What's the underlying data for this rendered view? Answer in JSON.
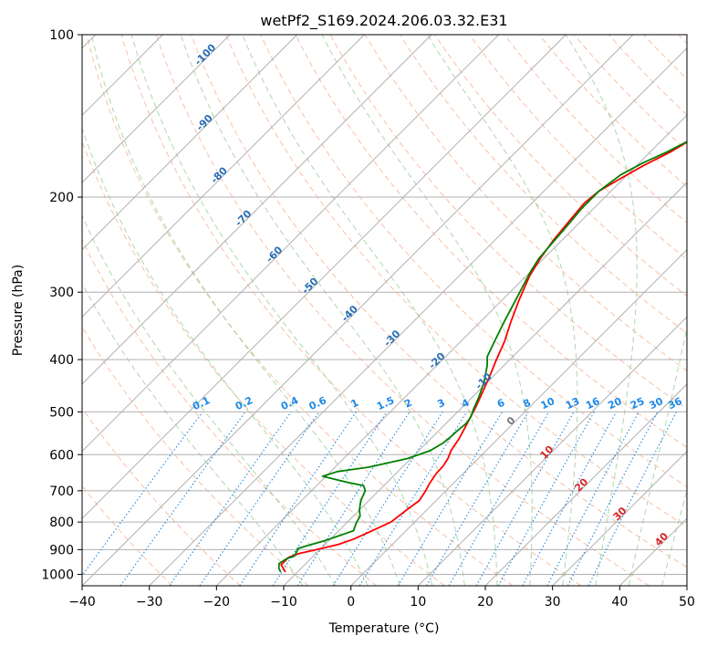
{
  "chart_data": {
    "type": "line",
    "title": "wetPf2_S169.2024.206.03.32.E31",
    "xlabel": "Temperature (°C)",
    "ylabel": "Pressure (hPa)",
    "xlim": [
      -40,
      50
    ],
    "ylim": [
      1050,
      100
    ],
    "y_scale": "log",
    "grid": true,
    "x_ticks": [
      "−40",
      "−30",
      "−20",
      "−10",
      "0",
      "10",
      "20",
      "30",
      "40",
      "50"
    ],
    "y_ticks": [
      "100",
      "200",
      "300",
      "400",
      "500",
      "600",
      "700",
      "800",
      "900",
      "1000"
    ],
    "series": [
      {
        "color": "#ff0000",
        "points": [
          [
            -11.8,
            990
          ],
          [
            -13.5,
            960
          ],
          [
            -13.5,
            930
          ],
          [
            -12.5,
            915
          ],
          [
            -10.5,
            900
          ],
          [
            -8,
            880
          ],
          [
            -6.5,
            860
          ],
          [
            -5,
            830
          ],
          [
            -3.5,
            800
          ],
          [
            -3,
            760
          ],
          [
            -2.5,
            730
          ],
          [
            -3,
            700
          ],
          [
            -3.5,
            680
          ],
          [
            -4,
            650
          ],
          [
            -4.1,
            630
          ],
          [
            -4.5,
            610
          ],
          [
            -5.2,
            590
          ],
          [
            -5.8,
            560
          ],
          [
            -6.7,
            530
          ],
          [
            -7.5,
            505
          ],
          [
            -8,
            490
          ],
          [
            -9.2,
            460
          ],
          [
            -10.5,
            430
          ],
          [
            -12,
            400
          ],
          [
            -13.5,
            370
          ],
          [
            -15.5,
            340
          ],
          [
            -17.5,
            310
          ],
          [
            -19.5,
            280
          ],
          [
            -20.5,
            260
          ],
          [
            -21.3,
            240
          ],
          [
            -21.8,
            220
          ],
          [
            -22.2,
            205
          ],
          [
            -21.8,
            195
          ],
          [
            -20.5,
            185
          ],
          [
            -19,
            175
          ],
          [
            -17,
            165
          ],
          [
            -15.5,
            155
          ],
          [
            -14,
            147
          ],
          [
            -12.5,
            138
          ],
          [
            -10.5,
            128
          ],
          [
            -8.5,
            120
          ],
          [
            -6.5,
            113
          ],
          [
            -5,
            108
          ],
          [
            -3.5,
            103
          ],
          [
            -2.5,
            100
          ]
        ]
      },
      {
        "color": "#008000",
        "points": [
          [
            -12.5,
            990
          ],
          [
            -13.3,
            975
          ],
          [
            -14,
            955
          ],
          [
            -13.6,
            935
          ],
          [
            -12.8,
            925
          ],
          [
            -13.2,
            905
          ],
          [
            -13.4,
            895
          ],
          [
            -12.5,
            885
          ],
          [
            -10.5,
            865
          ],
          [
            -7.8,
            830
          ],
          [
            -8.5,
            805
          ],
          [
            -9,
            780
          ],
          [
            -10,
            760
          ],
          [
            -11.2,
            730
          ],
          [
            -12,
            700
          ],
          [
            -13,
            685
          ],
          [
            -16,
            675
          ],
          [
            -20.5,
            658
          ],
          [
            -19,
            645
          ],
          [
            -15,
            633
          ],
          [
            -10.5,
            610
          ],
          [
            -8.3,
            590
          ],
          [
            -7.5,
            570
          ],
          [
            -7.3,
            555
          ],
          [
            -7.2,
            540
          ],
          [
            -7,
            525
          ],
          [
            -7.3,
            510
          ],
          [
            -8,
            495
          ],
          [
            -9,
            470
          ],
          [
            -10.5,
            440
          ],
          [
            -12.5,
            410
          ],
          [
            -13.8,
            395
          ],
          [
            -14.5,
            380
          ],
          [
            -15,
            370
          ],
          [
            -16.5,
            340
          ],
          [
            -18,
            310
          ],
          [
            -20,
            275
          ],
          [
            -20.7,
            260
          ],
          [
            -21,
            245
          ],
          [
            -21.4,
            225
          ],
          [
            -21.8,
            210
          ],
          [
            -21.8,
            195
          ],
          [
            -21,
            182
          ],
          [
            -19.5,
            173
          ],
          [
            -17.5,
            165
          ],
          [
            -15.5,
            155
          ],
          [
            -14,
            147
          ],
          [
            -12.5,
            138
          ],
          [
            -10.5,
            128
          ],
          [
            -8.5,
            120
          ],
          [
            -6.5,
            113
          ],
          [
            -5,
            108
          ],
          [
            -3.5,
            103
          ],
          [
            -2.5,
            100
          ]
        ]
      }
    ],
    "dry_adiabat_labels": [
      "-100",
      "-90",
      "-80",
      "-70",
      "-60",
      "-50",
      "-40",
      "-30",
      "-20",
      "-10",
      "0",
      "10",
      "20",
      "30",
      "40"
    ],
    "mixing_ratio_labels": [
      "0.1",
      "0.2",
      "0.4",
      "0.6",
      "1",
      "1.5",
      "2",
      "3",
      "4",
      "6",
      "8",
      "10",
      "13",
      "16",
      "20",
      "25",
      "30",
      "36"
    ],
    "colors": {
      "temperature": "#ff0000",
      "dewpoint": "#008000",
      "dry_adiabat": "#f4a582",
      "moist_adiabat": "#8fcb8f",
      "mixing_ratio": "#1e88e5",
      "isotherm": "#b0b0b0",
      "label_blue": "#2a6fb5",
      "label_red": "#d62728"
    }
  }
}
